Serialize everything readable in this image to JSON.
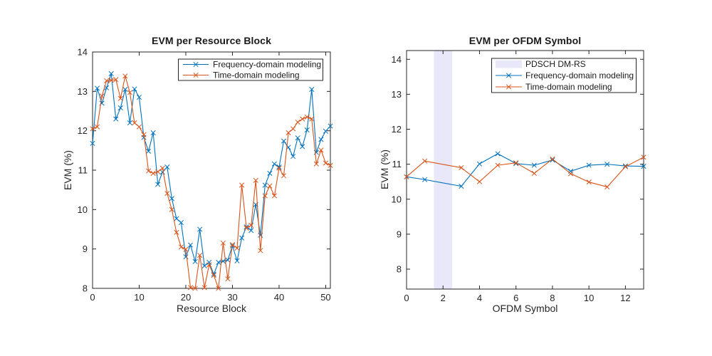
{
  "figure": {
    "background": "#ffffff"
  },
  "palette": {
    "frequency_series": "#0072BD",
    "time_series": "#D95319",
    "axis": "#262626",
    "band": "#e8e8fa"
  },
  "chart_data": [
    {
      "type": "line",
      "title": "EVM per Resource Block",
      "xlabel": "Resource Block",
      "ylabel": "EVM (%)",
      "xlim": [
        0,
        51
      ],
      "ylim": [
        8,
        14
      ],
      "xticks": [
        0,
        10,
        20,
        30,
        40,
        50
      ],
      "yticks": [
        8,
        9,
        10,
        11,
        12,
        13,
        14
      ],
      "grid": false,
      "legend_position": "upper-right-inside",
      "series": [
        {
          "name": "Frequency-domain modeling",
          "color": "#0072BD",
          "marker": "x",
          "x": [
            0,
            1,
            2,
            3,
            4,
            5,
            6,
            7,
            8,
            9,
            10,
            11,
            12,
            13,
            14,
            15,
            16,
            17,
            18,
            19,
            20,
            21,
            22,
            23,
            24,
            25,
            26,
            27,
            28,
            29,
            30,
            31,
            32,
            33,
            34,
            35,
            36,
            37,
            38,
            39,
            40,
            41,
            42,
            43,
            44,
            45,
            46,
            47,
            48,
            49,
            50,
            51
          ],
          "values": [
            11.68,
            13.08,
            12.7,
            13.09,
            13.45,
            12.3,
            12.58,
            13.05,
            12.2,
            13.06,
            12.85,
            11.83,
            11.48,
            11.95,
            10.64,
            10.95,
            11.08,
            10.28,
            9.77,
            9.67,
            8.8,
            9.1,
            8.68,
            9.5,
            8.57,
            8.66,
            8.36,
            8.66,
            8.69,
            8.72,
            9.08,
            8.7,
            9.28,
            9.56,
            9.47,
            10.13,
            9.35,
            10.62,
            10.92,
            11.16,
            11.08,
            11.74,
            11.58,
            11.35,
            11.82,
            11.6,
            12.02,
            13.05,
            11.45,
            11.78,
            11.99,
            12.12
          ]
        },
        {
          "name": "Time-domain modeling",
          "color": "#D95319",
          "marker": "x",
          "x": [
            0,
            1,
            2,
            3,
            4,
            5,
            6,
            7,
            8,
            9,
            10,
            11,
            12,
            13,
            14,
            15,
            16,
            17,
            18,
            19,
            20,
            21,
            22,
            23,
            24,
            25,
            26,
            27,
            28,
            29,
            30,
            31,
            32,
            33,
            34,
            35,
            36,
            37,
            38,
            39,
            40,
            41,
            42,
            43,
            44,
            45,
            46,
            47,
            48,
            49,
            50,
            51
          ],
          "values": [
            12.05,
            12.1,
            12.88,
            13.27,
            13.28,
            13.3,
            12.82,
            13.39,
            12.97,
            12.2,
            12.1,
            11.9,
            10.98,
            10.92,
            10.96,
            11.05,
            10.41,
            10.0,
            9.42,
            9.05,
            8.99,
            8.02,
            8.0,
            8.84,
            8.02,
            8.6,
            8.33,
            8.0,
            9.15,
            8.24,
            9.11,
            9.02,
            10.62,
            9.53,
            9.6,
            10.74,
            8.96,
            10.35,
            10.6,
            10.35,
            11.05,
            10.86,
            11.95,
            12.05,
            12.22,
            12.3,
            12.35,
            12.3,
            11.16,
            11.51,
            11.18,
            11.12
          ]
        }
      ]
    },
    {
      "type": "line",
      "title": "EVM per OFDM Symbol",
      "xlabel": "OFDM Symbol",
      "ylabel": "EVM (%)",
      "xlim": [
        0,
        13
      ],
      "ylim": [
        7.43,
        14.25
      ],
      "xticks": [
        0,
        2,
        4,
        6,
        8,
        10,
        12
      ],
      "yticks": [
        8,
        9,
        10,
        11,
        12,
        13,
        14
      ],
      "grid": false,
      "legend_position": "upper-right-inside",
      "band": {
        "label": "PDSCH DM-RS",
        "x_range": [
          1.5,
          2.5
        ],
        "color": "#e8e8fa"
      },
      "series": [
        {
          "name": "Frequency-domain modeling",
          "color": "#0072BD",
          "marker": "x",
          "x": [
            0,
            1,
            3,
            4,
            5,
            6,
            7,
            8,
            9,
            10,
            11,
            12,
            13
          ],
          "values": [
            10.64,
            10.56,
            10.37,
            11.01,
            11.3,
            11.02,
            10.97,
            11.12,
            10.8,
            10.97,
            11.0,
            10.95,
            10.94
          ]
        },
        {
          "name": "Time-domain modeling",
          "color": "#D95319",
          "marker": "x",
          "x": [
            0,
            1,
            3,
            4,
            5,
            6,
            7,
            8,
            9,
            10,
            11,
            12,
            13
          ],
          "values": [
            10.64,
            11.09,
            10.9,
            10.5,
            10.97,
            11.04,
            10.74,
            11.15,
            10.73,
            10.49,
            10.35,
            10.93,
            11.2
          ]
        }
      ]
    }
  ]
}
